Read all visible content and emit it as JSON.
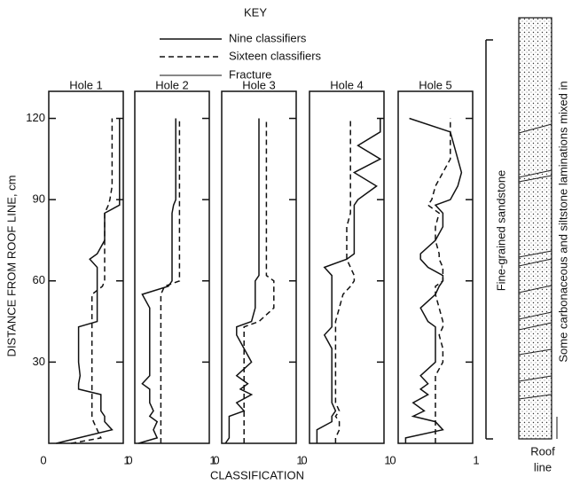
{
  "key": {
    "title": "KEY",
    "entries": [
      "Nine classifiers",
      "Sixteen classifiers",
      "Fracture"
    ]
  },
  "y_axis_label": "DISTANCE FROM ROOF LINE, cm",
  "x_axis_label": "CLASSIFICATION",
  "column": {
    "label": "Fine-grained sandstone",
    "note": "Some carbonaceous and siltstone laminations mixed in",
    "roof": "Roof",
    "roof_line": "line"
  },
  "chart_data": [
    {
      "type": "line",
      "title": "Hole 1",
      "xlim": [
        0,
        1
      ],
      "xticks": [
        0,
        1
      ],
      "ylim": [
        0,
        130
      ],
      "yticks": [
        30,
        60,
        90,
        120
      ],
      "y": [
        0,
        2,
        5,
        8,
        10,
        12,
        15,
        18,
        20,
        22,
        25,
        30,
        35,
        40,
        43,
        45,
        50,
        55,
        58,
        60,
        62,
        65,
        68,
        70,
        75,
        80,
        85,
        88,
        90,
        95,
        100,
        105,
        110,
        115,
        120
      ],
      "series": [
        {
          "style": "solid",
          "color": "#111111",
          "values": [
            0.1,
            0.4,
            0.85,
            0.75,
            0.75,
            0.7,
            0.7,
            0.7,
            0.4,
            0.4,
            0.42,
            0.4,
            0.4,
            0.4,
            0.4,
            0.65,
            0.65,
            0.65,
            0.65,
            0.65,
            0.65,
            0.65,
            0.55,
            0.65,
            0.75,
            0.75,
            0.75,
            0.95,
            0.95,
            0.95,
            0.95,
            0.95,
            0.95,
            0.95,
            0.95
          ]
        },
        {
          "style": "dashed",
          "color": "#111111",
          "values": [
            0.3,
            0.7,
            0.65,
            0.6,
            0.58,
            0.58,
            0.58,
            0.58,
            0.58,
            0.58,
            0.58,
            0.58,
            0.58,
            0.58,
            0.58,
            0.58,
            0.58,
            0.58,
            0.72,
            0.75,
            0.75,
            0.75,
            0.75,
            0.75,
            0.75,
            0.75,
            0.75,
            0.8,
            0.82,
            0.85,
            0.85,
            0.85,
            0.85,
            0.85,
            0.85
          ]
        }
      ]
    },
    {
      "type": "line",
      "title": "Hole 2",
      "xlim": [
        0,
        1
      ],
      "xticks": [
        0,
        1
      ],
      "ylim": [
        0,
        130
      ],
      "y": [
        0,
        2,
        5,
        8,
        10,
        12,
        15,
        18,
        20,
        22,
        25,
        30,
        35,
        40,
        43,
        45,
        50,
        55,
        58,
        60,
        62,
        65,
        68,
        70,
        75,
        80,
        85,
        88,
        90,
        95,
        100,
        105,
        110,
        115,
        120
      ],
      "series": [
        {
          "style": "solid",
          "color": "#111111",
          "values": [
            0.05,
            0.3,
            0.25,
            0.3,
            0.2,
            0.25,
            0.2,
            0.2,
            0.2,
            0.1,
            0.2,
            0.2,
            0.2,
            0.2,
            0.2,
            0.2,
            0.2,
            0.1,
            0.45,
            0.5,
            0.5,
            0.5,
            0.5,
            0.5,
            0.5,
            0.5,
            0.5,
            0.52,
            0.55,
            0.55,
            0.55,
            0.55,
            0.55,
            0.55,
            0.55
          ]
        },
        {
          "style": "dashed",
          "color": "#111111",
          "values": [
            0.35,
            0.35,
            0.35,
            0.35,
            0.35,
            0.35,
            0.35,
            0.35,
            0.35,
            0.35,
            0.35,
            0.35,
            0.35,
            0.35,
            0.35,
            0.35,
            0.35,
            0.35,
            0.4,
            0.6,
            0.6,
            0.6,
            0.6,
            0.6,
            0.6,
            0.6,
            0.6,
            0.6,
            0.6,
            0.6,
            0.6,
            0.6,
            0.6,
            0.6,
            0.6
          ]
        }
      ]
    },
    {
      "type": "line",
      "title": "Hole 3",
      "xlim": [
        0,
        1
      ],
      "xticks": [
        0,
        1
      ],
      "ylim": [
        0,
        130
      ],
      "y": [
        0,
        2,
        5,
        8,
        10,
        12,
        15,
        18,
        20,
        22,
        25,
        30,
        35,
        40,
        43,
        45,
        50,
        55,
        58,
        60,
        62,
        65,
        68,
        70,
        75,
        80,
        85,
        88,
        90,
        95,
        100,
        105,
        110,
        115,
        120
      ],
      "series": [
        {
          "style": "solid",
          "color": "#111111",
          "values": [
            0.05,
            0.1,
            0.1,
            0.1,
            0.1,
            0.3,
            0.2,
            0.4,
            0.25,
            0.35,
            0.2,
            0.4,
            0.3,
            0.2,
            0.2,
            0.4,
            0.45,
            0.45,
            0.45,
            0.45,
            0.5,
            0.5,
            0.5,
            0.5,
            0.5,
            0.5,
            0.5,
            0.5,
            0.5,
            0.5,
            0.5,
            0.5,
            0.5,
            0.5,
            0.5
          ]
        },
        {
          "style": "dashed",
          "color": "#111111",
          "values": [
            0.3,
            0.3,
            0.3,
            0.3,
            0.3,
            0.3,
            0.3,
            0.3,
            0.3,
            0.3,
            0.3,
            0.3,
            0.3,
            0.3,
            0.3,
            0.5,
            0.7,
            0.7,
            0.7,
            0.7,
            0.6,
            0.6,
            0.6,
            0.6,
            0.6,
            0.6,
            0.6,
            0.6,
            0.6,
            0.6,
            0.6,
            0.6,
            0.6,
            0.6,
            0.6
          ]
        }
      ]
    },
    {
      "type": "line",
      "title": "Hole 4",
      "xlim": [
        0,
        1
      ],
      "xticks": [
        0,
        1
      ],
      "ylim": [
        0,
        130
      ],
      "y": [
        0,
        2,
        5,
        8,
        10,
        12,
        15,
        18,
        20,
        22,
        25,
        30,
        35,
        40,
        43,
        45,
        50,
        55,
        58,
        60,
        62,
        65,
        68,
        70,
        75,
        80,
        85,
        88,
        90,
        95,
        100,
        105,
        110,
        115,
        120
      ],
      "series": [
        {
          "style": "solid",
          "color": "#111111",
          "values": [
            0.1,
            0.1,
            0.1,
            0.3,
            0.3,
            0.35,
            0.3,
            0.3,
            0.3,
            0.3,
            0.3,
            0.3,
            0.3,
            0.2,
            0.3,
            0.3,
            0.3,
            0.3,
            0.3,
            0.3,
            0.3,
            0.2,
            0.5,
            0.6,
            0.6,
            0.6,
            0.6,
            0.6,
            0.65,
            0.9,
            0.6,
            0.95,
            0.65,
            0.95,
            0.95
          ]
        },
        {
          "style": "dashed",
          "color": "#111111",
          "values": [
            0.35,
            0.35,
            0.4,
            0.4,
            0.35,
            0.4,
            0.35,
            0.35,
            0.35,
            0.35,
            0.35,
            0.35,
            0.35,
            0.35,
            0.35,
            0.35,
            0.4,
            0.45,
            0.55,
            0.6,
            0.6,
            0.55,
            0.5,
            0.5,
            0.5,
            0.5,
            0.55,
            0.55,
            0.55,
            0.55,
            0.55,
            0.55,
            0.55,
            0.55,
            0.55
          ]
        }
      ]
    },
    {
      "type": "line",
      "title": "Hole 5",
      "xlim": [
        0,
        1
      ],
      "xticks": [
        0,
        1
      ],
      "ylim": [
        0,
        130
      ],
      "y": [
        0,
        2,
        5,
        8,
        10,
        12,
        15,
        18,
        20,
        22,
        25,
        30,
        35,
        40,
        43,
        45,
        50,
        55,
        58,
        60,
        62,
        65,
        68,
        70,
        75,
        80,
        85,
        88,
        90,
        95,
        100,
        105,
        110,
        115,
        120
      ],
      "series": [
        {
          "style": "solid",
          "color": "#111111",
          "values": [
            0.1,
            0.1,
            0.6,
            0.5,
            0.2,
            0.35,
            0.2,
            0.4,
            0.3,
            0.4,
            0.3,
            0.5,
            0.5,
            0.5,
            0.5,
            0.4,
            0.3,
            0.5,
            0.55,
            0.6,
            0.6,
            0.4,
            0.3,
            0.3,
            0.5,
            0.6,
            0.6,
            0.5,
            0.7,
            0.8,
            0.85,
            0.8,
            0.75,
            0.7,
            0.15
          ]
        },
        {
          "style": "dashed",
          "color": "#111111",
          "values": [
            0.5,
            0.5,
            0.5,
            0.5,
            0.5,
            0.5,
            0.5,
            0.5,
            0.5,
            0.5,
            0.5,
            0.6,
            0.6,
            0.55,
            0.6,
            0.6,
            0.55,
            0.5,
            0.5,
            0.6,
            0.6,
            0.6,
            0.55,
            0.55,
            0.5,
            0.5,
            0.55,
            0.4,
            0.45,
            0.5,
            0.6,
            0.7,
            0.7,
            0.7,
            0.7
          ]
        }
      ]
    }
  ]
}
